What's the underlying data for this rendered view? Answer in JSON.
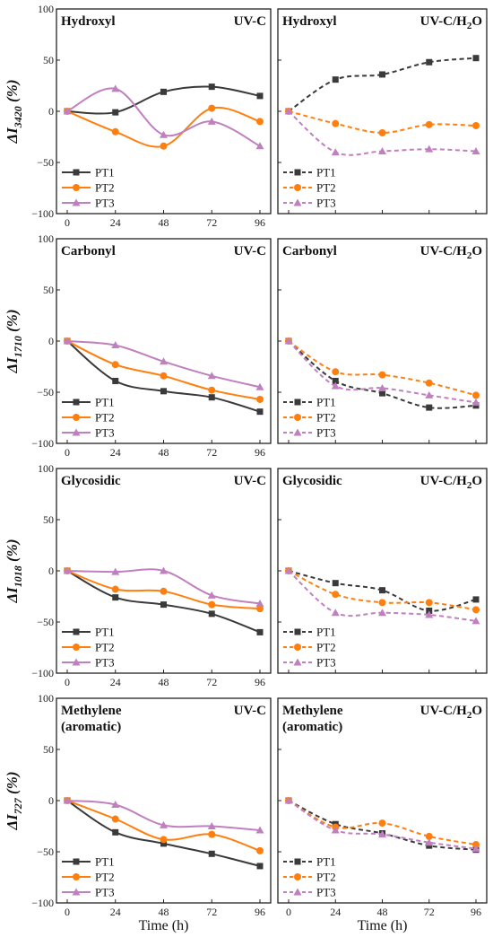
{
  "colors": {
    "PT1": "#3a3a3a",
    "PT2": "#ff7f0e",
    "PT3": "#c080c0"
  },
  "chart_data": [
    {
      "type": "line",
      "title": "Hydroxyl",
      "condition": "UV-C",
      "ylabel_main": "ΔI",
      "ylabel_sub": "3420",
      "ylabel_unit": " (%)",
      "x": [
        0,
        24,
        48,
        72,
        96
      ],
      "x_tick_labels": [
        "0",
        "24",
        "48",
        "72",
        "96"
      ],
      "ylim": [
        -100,
        100
      ],
      "y_tick_labels": [
        "100",
        "50",
        "0",
        "−50",
        "−100"
      ],
      "line_style": "solid",
      "legend_position": "bottom-left",
      "series": [
        {
          "name": "PT1",
          "marker": "square",
          "values": [
            0,
            -1,
            19,
            24,
            15
          ]
        },
        {
          "name": "PT2",
          "marker": "circle",
          "values": [
            0,
            -20,
            -34,
            3,
            -10
          ]
        },
        {
          "name": "PT3",
          "marker": "triangle",
          "values": [
            0,
            22,
            -23,
            -10,
            -34
          ]
        }
      ]
    },
    {
      "type": "line",
      "title": "Hydroxyl",
      "condition": "UV-C/H2O",
      "x": [
        0,
        24,
        48,
        72,
        96
      ],
      "ylim": [
        -100,
        100
      ],
      "line_style": "dashed",
      "legend_position": "bottom-left",
      "series": [
        {
          "name": "PT1",
          "marker": "square",
          "values": [
            0,
            31,
            36,
            48,
            52
          ]
        },
        {
          "name": "PT2",
          "marker": "circle",
          "values": [
            0,
            -12,
            -21,
            -13,
            -14
          ]
        },
        {
          "name": "PT3",
          "marker": "triangle",
          "values": [
            0,
            -40,
            -39,
            -37,
            -39
          ]
        }
      ]
    },
    {
      "type": "line",
      "title": "Carbonyl",
      "condition": "UV-C",
      "ylabel_main": "ΔI",
      "ylabel_sub": "1710",
      "ylabel_unit": " (%)",
      "x": [
        0,
        24,
        48,
        72,
        96
      ],
      "x_tick_labels": [
        "0",
        "24",
        "48",
        "72",
        "96"
      ],
      "ylim": [
        -100,
        100
      ],
      "y_tick_labels": [
        "100",
        "50",
        "0",
        "−50",
        "−100"
      ],
      "line_style": "solid",
      "legend_position": "bottom-left",
      "series": [
        {
          "name": "PT1",
          "marker": "square",
          "values": [
            0,
            -39,
            -49,
            -55,
            -69
          ]
        },
        {
          "name": "PT2",
          "marker": "circle",
          "values": [
            0,
            -23,
            -34,
            -48,
            -57
          ]
        },
        {
          "name": "PT3",
          "marker": "triangle",
          "values": [
            0,
            -4,
            -20,
            -34,
            -45
          ]
        }
      ]
    },
    {
      "type": "line",
      "title": "Carbonyl",
      "condition": "UV-C/H2O",
      "x": [
        0,
        24,
        48,
        72,
        96
      ],
      "ylim": [
        -100,
        100
      ],
      "line_style": "dashed",
      "legend_position": "bottom-left",
      "series": [
        {
          "name": "PT1",
          "marker": "square",
          "values": [
            0,
            -39,
            -51,
            -65,
            -63
          ]
        },
        {
          "name": "PT2",
          "marker": "circle",
          "values": [
            0,
            -30,
            -33,
            -41,
            -53
          ]
        },
        {
          "name": "PT3",
          "marker": "triangle",
          "values": [
            0,
            -44,
            -46,
            -53,
            -60
          ]
        }
      ]
    },
    {
      "type": "line",
      "title": "Glycosidic",
      "condition": "UV-C",
      "ylabel_main": "ΔI",
      "ylabel_sub": "1018",
      "ylabel_unit": " (%)",
      "x": [
        0,
        24,
        48,
        72,
        96
      ],
      "x_tick_labels": [
        "0",
        "24",
        "48",
        "72",
        "96"
      ],
      "ylim": [
        -100,
        100
      ],
      "y_tick_labels": [
        "100",
        "50",
        "0",
        "−50",
        "−100"
      ],
      "line_style": "solid",
      "legend_position": "bottom-left",
      "series": [
        {
          "name": "PT1",
          "marker": "square",
          "values": [
            0,
            -26,
            -33,
            -42,
            -60
          ]
        },
        {
          "name": "PT2",
          "marker": "circle",
          "values": [
            0,
            -18,
            -20,
            -33,
            -37
          ]
        },
        {
          "name": "PT3",
          "marker": "triangle",
          "values": [
            0,
            -1,
            0,
            -24,
            -32
          ]
        }
      ]
    },
    {
      "type": "line",
      "title": "Glycosidic",
      "condition": "UV-C/H2O",
      "x": [
        0,
        24,
        48,
        72,
        96
      ],
      "ylim": [
        -100,
        100
      ],
      "line_style": "dashed",
      "legend_position": "bottom-left",
      "series": [
        {
          "name": "PT1",
          "marker": "square",
          "values": [
            0,
            -12,
            -19,
            -39,
            -28
          ]
        },
        {
          "name": "PT2",
          "marker": "circle",
          "values": [
            0,
            -23,
            -31,
            -31,
            -38
          ]
        },
        {
          "name": "PT3",
          "marker": "triangle",
          "values": [
            0,
            -41,
            -41,
            -43,
            -49
          ]
        }
      ]
    },
    {
      "type": "line",
      "title": "Methylene",
      "title_line2": "(aromatic)",
      "condition": "UV-C",
      "ylabel_main": "ΔI",
      "ylabel_sub": "727",
      "ylabel_unit": " (%)",
      "x": [
        0,
        24,
        48,
        72,
        96
      ],
      "x_tick_labels": [
        "0",
        "24",
        "48",
        "72",
        "96"
      ],
      "xlabel": "Time (h)",
      "ylim": [
        -100,
        100
      ],
      "y_tick_labels": [
        "100",
        "50",
        "0",
        "−50",
        "−100"
      ],
      "line_style": "solid",
      "legend_position": "bottom-left",
      "series": [
        {
          "name": "PT1",
          "marker": "square",
          "values": [
            0,
            -31,
            -42,
            -52,
            -64
          ]
        },
        {
          "name": "PT2",
          "marker": "circle",
          "values": [
            0,
            -18,
            -38,
            -33,
            -49
          ]
        },
        {
          "name": "PT3",
          "marker": "triangle",
          "values": [
            0,
            -4,
            -24,
            -25,
            -29
          ]
        }
      ]
    },
    {
      "type": "line",
      "title": "Methylene",
      "title_line2": "(aromatic)",
      "condition": "UV-C/H2O",
      "x": [
        0,
        24,
        48,
        72,
        96
      ],
      "x_tick_labels": [
        "0",
        "24",
        "48",
        "72",
        "96"
      ],
      "xlabel": "Time (h)",
      "ylim": [
        -100,
        100
      ],
      "line_style": "dashed",
      "legend_position": "bottom-left",
      "series": [
        {
          "name": "PT1",
          "marker": "square",
          "values": [
            0,
            -23,
            -32,
            -44,
            -48
          ]
        },
        {
          "name": "PT2",
          "marker": "circle",
          "values": [
            0,
            -26,
            -22,
            -35,
            -43
          ]
        },
        {
          "name": "PT3",
          "marker": "triangle",
          "values": [
            0,
            -29,
            -33,
            -41,
            -47
          ]
        }
      ]
    }
  ]
}
